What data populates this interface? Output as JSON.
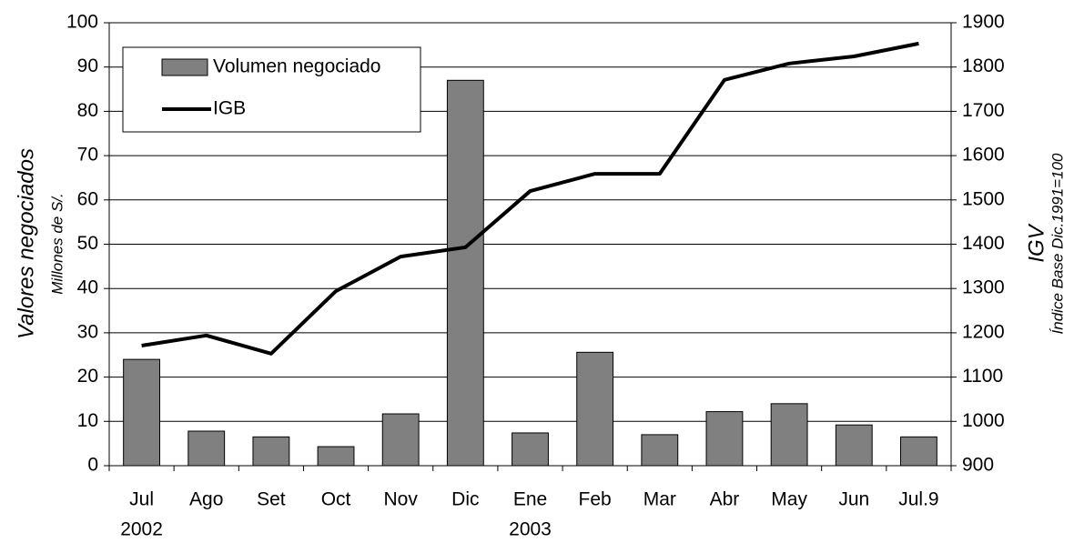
{
  "chart_data": {
    "type": "bar_line",
    "categories": [
      "Jul",
      "Ago",
      "Set",
      "Oct",
      "Nov",
      "Dic",
      "Ene",
      "Feb",
      "Mar",
      "Abr",
      "May",
      "Jun",
      "Jul.9"
    ],
    "category_years": [
      "2002",
      null,
      null,
      null,
      null,
      null,
      "2003",
      null,
      null,
      null,
      null,
      null,
      null
    ],
    "series": [
      {
        "name": "Volumen negociado",
        "type": "bar",
        "color": "#808080",
        "axis": "y",
        "values": [
          24,
          7.8,
          6.5,
          4.3,
          11.7,
          87,
          7.4,
          25.6,
          7,
          12.2,
          14,
          9.2,
          6.5
        ]
      },
      {
        "name": "IGB",
        "type": "line",
        "color": "#000000",
        "axis": "y2",
        "values": [
          1171,
          1194,
          1153,
          1294,
          1372,
          1393,
          1520,
          1559,
          1559,
          1771,
          1808,
          1824,
          1853
        ]
      }
    ],
    "y_label": "Valores negociados",
    "y_sublabel": "Millones de S/.",
    "y2_label": "IGV",
    "y2_sublabel": "Índice Base Dic.1991=100",
    "ylim": [
      0,
      100
    ],
    "yticks": [
      0,
      10,
      20,
      30,
      40,
      50,
      60,
      70,
      80,
      90,
      100
    ],
    "y2lim": [
      900,
      1900
    ],
    "y2ticks": [
      900,
      1000,
      1100,
      1200,
      1300,
      1400,
      1500,
      1600,
      1700,
      1800,
      1900
    ],
    "grid": true,
    "legend": "upper left"
  }
}
